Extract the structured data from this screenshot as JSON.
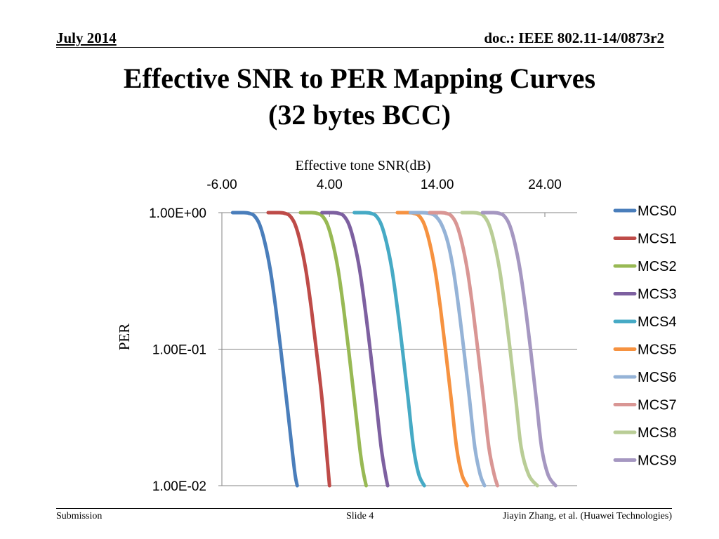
{
  "header": {
    "date": "July 2014",
    "doc_id": "doc.: IEEE 802.11-14/0873r2"
  },
  "slide": {
    "title_line1": "Effective SNR to PER Mapping Curves",
    "title_line2": "(32 bytes BCC)"
  },
  "footer": {
    "left": "Submission",
    "center": "Slide 4",
    "right": "Jiayin Zhang, et al. (Huawei Technologies)"
  },
  "chart_data": {
    "type": "line",
    "title": "",
    "xlabel": "Effective tone SNR(dB)",
    "ylabel": "PER",
    "x_axis_position": "top",
    "x_ticks": [
      "-6.00",
      "4.00",
      "14.00",
      "24.00"
    ],
    "x_tick_values": [
      -6,
      4,
      14,
      24
    ],
    "xlim": [
      -6,
      27
    ],
    "y_scale": "log",
    "y_ticks": [
      "1.00E+00",
      "1.00E-01",
      "1.00E-02"
    ],
    "y_tick_values": [
      1,
      0.1,
      0.01
    ],
    "ylim": [
      0.01,
      1
    ],
    "grid": "horizontal",
    "legend": "right",
    "series": [
      {
        "name": "MCS0",
        "color": "#4A7EBB",
        "x": [
          -5,
          -4,
          -3.5,
          -3,
          -2.5,
          -2,
          -1.5,
          -1,
          -0.5,
          0,
          0.5,
          0.8,
          1.0
        ],
        "y": [
          1.0,
          1.0,
          0.99,
          0.95,
          0.82,
          0.6,
          0.38,
          0.2,
          0.095,
          0.043,
          0.019,
          0.012,
          0.01
        ]
      },
      {
        "name": "MCS1",
        "color": "#BE4B48",
        "x": [
          -1.7,
          -0.7,
          -0.2,
          0.3,
          0.8,
          1.3,
          1.8,
          2.3,
          2.8,
          3.3,
          3.8,
          4.0
        ],
        "y": [
          1.0,
          1.0,
          0.99,
          0.95,
          0.82,
          0.6,
          0.38,
          0.2,
          0.095,
          0.043,
          0.015,
          0.01
        ]
      },
      {
        "name": "MCS2",
        "color": "#98B954",
        "x": [
          1.3,
          2.3,
          2.8,
          3.3,
          3.8,
          4.3,
          4.8,
          5.3,
          5.8,
          6.3,
          6.8,
          7.1,
          7.4
        ],
        "y": [
          1.0,
          1.0,
          0.99,
          0.95,
          0.82,
          0.6,
          0.38,
          0.2,
          0.095,
          0.043,
          0.019,
          0.013,
          0.01
        ]
      },
      {
        "name": "MCS3",
        "color": "#7D60A0",
        "x": [
          3.3,
          4.3,
          4.8,
          5.3,
          5.8,
          6.3,
          6.8,
          7.3,
          7.8,
          8.3,
          8.8,
          9.2,
          9.4
        ],
        "y": [
          1.0,
          1.0,
          0.99,
          0.95,
          0.82,
          0.6,
          0.38,
          0.2,
          0.095,
          0.043,
          0.019,
          0.012,
          0.01
        ]
      },
      {
        "name": "MCS4",
        "color": "#46AAC5",
        "x": [
          6.3,
          7.3,
          7.8,
          8.3,
          8.8,
          9.3,
          9.8,
          10.3,
          10.8,
          11.3,
          11.8,
          12.3,
          12.8
        ],
        "y": [
          1.0,
          1.0,
          0.99,
          0.95,
          0.82,
          0.6,
          0.38,
          0.2,
          0.095,
          0.043,
          0.019,
          0.012,
          0.01
        ]
      },
      {
        "name": "MCS5",
        "color": "#F69240",
        "x": [
          10.3,
          11.3,
          11.8,
          12.3,
          12.8,
          13.3,
          13.8,
          14.3,
          14.8,
          15.3,
          15.8,
          16.3,
          16.8
        ],
        "y": [
          1.0,
          1.0,
          0.99,
          0.95,
          0.82,
          0.6,
          0.38,
          0.2,
          0.095,
          0.043,
          0.019,
          0.012,
          0.01
        ]
      },
      {
        "name": "MCS6",
        "color": "#95B3D7",
        "x": [
          11.5,
          12.5,
          13.2,
          13.8,
          14.4,
          15.0,
          15.5,
          16.0,
          16.5,
          17.0,
          17.5,
          18.0,
          18.4
        ],
        "y": [
          1.0,
          1.0,
          0.99,
          0.95,
          0.82,
          0.6,
          0.38,
          0.2,
          0.095,
          0.043,
          0.019,
          0.012,
          0.01
        ]
      },
      {
        "name": "MCS7",
        "color": "#D99694",
        "x": [
          13.3,
          14.3,
          14.8,
          15.3,
          15.8,
          16.3,
          16.8,
          17.3,
          17.8,
          18.3,
          18.8,
          19.3,
          19.6
        ],
        "y": [
          1.0,
          1.0,
          0.99,
          0.95,
          0.82,
          0.6,
          0.38,
          0.2,
          0.095,
          0.043,
          0.019,
          0.012,
          0.01
        ]
      },
      {
        "name": "MCS8",
        "color": "#B9CD96",
        "x": [
          16.3,
          17.3,
          17.8,
          18.3,
          18.8,
          19.3,
          19.8,
          20.3,
          20.8,
          21.3,
          21.8,
          22.5,
          23.3
        ],
        "y": [
          1.0,
          1.0,
          0.99,
          0.95,
          0.82,
          0.6,
          0.38,
          0.2,
          0.095,
          0.043,
          0.019,
          0.012,
          0.01
        ]
      },
      {
        "name": "MCS9",
        "color": "#A597C1",
        "x": [
          18.2,
          19.2,
          19.7,
          20.2,
          20.7,
          21.2,
          21.7,
          22.2,
          22.7,
          23.2,
          23.7,
          24.3,
          25.0
        ],
        "y": [
          1.0,
          1.0,
          0.99,
          0.95,
          0.82,
          0.6,
          0.38,
          0.2,
          0.095,
          0.043,
          0.019,
          0.012,
          0.01
        ]
      }
    ]
  }
}
